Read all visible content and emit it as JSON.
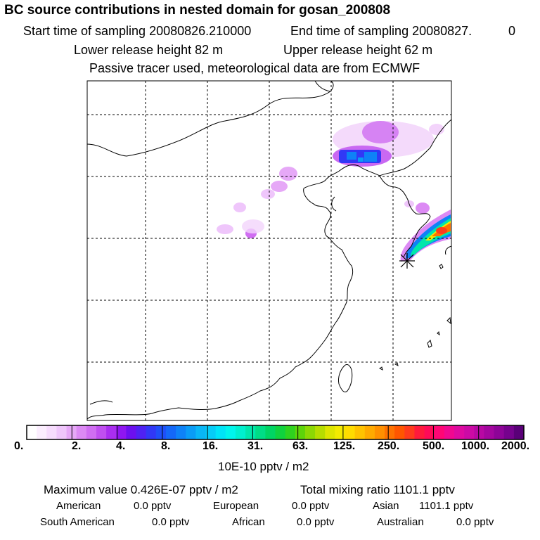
{
  "title": "BC  source contributions in nested domain for gosan_200808",
  "header": {
    "start_label": "Start time of sampling 20080826.210000",
    "end_label": "End time of sampling 20080827.",
    "end_value": "0",
    "lower_label": "Lower release height   82 m",
    "upper_label": "Upper release height   62 m",
    "tracer_note": "Passive tracer used, meteorological data are from ECMWF"
  },
  "colorbar": {
    "labels": [
      "0.",
      "2.",
      "4.",
      "8.",
      "16.",
      "31.",
      "63.",
      "125.",
      "250.",
      "500.",
      "1000.",
      "2000."
    ],
    "units": "10E-10 pptv / m2",
    "colors": [
      "#ffffff",
      "#fbeefe",
      "#f6dcfd",
      "#efc6fb",
      "#e6a8f7",
      "#dc8af4",
      "#d06ef2",
      "#c04ff0",
      "#aa2ef0",
      "#8f16f0",
      "#6c10ef",
      "#4f22f3",
      "#3138f6",
      "#1f4ff8",
      "#1468f8",
      "#0e82f7",
      "#0a9cf6",
      "#09b6f6",
      "#06ccf7",
      "#00e4f7",
      "#00f5ec",
      "#00efce",
      "#00e6ab",
      "#00dd86",
      "#00d563",
      "#10d23e",
      "#2fd21f",
      "#5dd40a",
      "#8cd804",
      "#b6dd00",
      "#dde500",
      "#f3ea00",
      "#ffdc00",
      "#ffc300",
      "#ffaa00",
      "#ff9000",
      "#ff7200",
      "#ff5600",
      "#ff3b1c",
      "#ff1a3c",
      "#ff0a58",
      "#ff0675",
      "#f00890",
      "#de0aa0",
      "#cc0aa5",
      "#b808a3",
      "#a4069f",
      "#8e0498",
      "#76028d",
      "#5a0078"
    ]
  },
  "footer": {
    "max_value": "Maximum value  0.426E-07 pptv / m2",
    "total_mixing": "Total mixing ratio     1101.1 pptv",
    "american_label": "American",
    "american_value": "0.0 pptv",
    "european_label": "European",
    "european_value": "0.0 pptv",
    "asian_label": "Asian",
    "asian_value": "1101.1 pptv",
    "south_american_label": "South American",
    "south_american_value": "0.0 pptv",
    "african_label": "African",
    "african_value": "0.0 pptv",
    "australian_label": "Australian",
    "australian_value": "0.0 pptv"
  },
  "chart_data": {
    "type": "heatmap",
    "title": "BC  source contributions in nested domain for gosan_200808",
    "units": "10E-10 pptv / m2",
    "color_levels": [
      0,
      2,
      4,
      8,
      16,
      31,
      63,
      125,
      250,
      500,
      1000,
      2000
    ],
    "maximum_value": "0.426E-07 pptv / m2",
    "total_mixing_ratio_pptv": 1101.1,
    "regions": [
      {
        "name": "American",
        "value_pptv": 0.0
      },
      {
        "name": "European",
        "value_pptv": 0.0
      },
      {
        "name": "Asian",
        "value_pptv": 1101.1
      },
      {
        "name": "South American",
        "value_pptv": 0.0
      },
      {
        "name": "African",
        "value_pptv": 0.0
      },
      {
        "name": "Australian",
        "value_pptv": 0.0
      }
    ],
    "receptor": "gosan",
    "grid": true
  }
}
